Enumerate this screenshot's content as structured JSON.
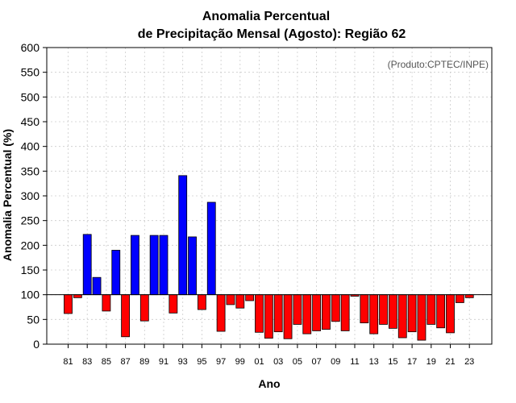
{
  "chart_data": {
    "type": "bar",
    "title_line1": "Anomalia Percentual",
    "title_line2": "de Precipitação Mensal (Agosto): Região 62",
    "xlabel": "Ano",
    "ylabel": "Anomalia Percentual (%)",
    "credit": "(Produto:CPTEC/INPE)",
    "baseline": 100,
    "ylim": [
      0,
      600
    ],
    "yticks": [
      0,
      50,
      100,
      150,
      200,
      250,
      300,
      350,
      400,
      450,
      500,
      550,
      600
    ],
    "grid": true,
    "colors": {
      "above": "#0000ff",
      "below": "#ff0000",
      "edge": "#000000"
    },
    "categories": [
      "80",
      "81",
      "82",
      "83",
      "84",
      "85",
      "86",
      "87",
      "88",
      "89",
      "90",
      "91",
      "92",
      "93",
      "94",
      "95",
      "96",
      "97",
      "98",
      "99",
      "00",
      "01",
      "02",
      "03",
      "04",
      "05",
      "06",
      "07",
      "08",
      "09",
      "10",
      "11",
      "12",
      "13",
      "14",
      "15",
      "16",
      "17",
      "18",
      "19",
      "20",
      "21",
      "22",
      "23",
      "24"
    ],
    "xtick_labels": [
      "81",
      "83",
      "85",
      "87",
      "89",
      "91",
      "93",
      "95",
      "97",
      "99",
      "01",
      "03",
      "05",
      "07",
      "09",
      "11",
      "13",
      "15",
      "17",
      "19",
      "21",
      "23"
    ],
    "values": [
      null,
      62,
      94,
      222,
      135,
      67,
      190,
      15,
      220,
      47,
      220,
      220,
      63,
      341,
      217,
      70,
      287,
      26,
      80,
      73,
      88,
      24,
      12,
      25,
      11,
      40,
      21,
      27,
      30,
      46,
      27,
      97,
      43,
      21,
      40,
      32,
      13,
      25,
      8,
      40,
      33,
      23,
      84,
      94,
      null
    ]
  }
}
